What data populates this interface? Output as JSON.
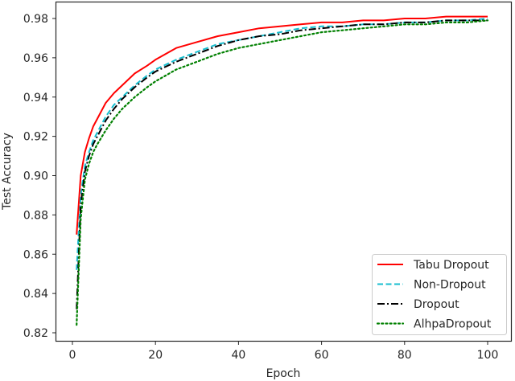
{
  "chart_data": {
    "type": "line",
    "title": "",
    "xlabel": "Epoch",
    "ylabel": "Test Accuracy",
    "xlim": [
      -4,
      105
    ],
    "ylim": [
      0.8164,
      0.9885
    ],
    "xticks": [
      0,
      20,
      40,
      60,
      80,
      100
    ],
    "xtick_labels": [
      "0",
      "20",
      "40",
      "60",
      "80",
      "100"
    ],
    "yticks": [
      0.82,
      0.84,
      0.86,
      0.88,
      0.9,
      0.92,
      0.94,
      0.96,
      0.98
    ],
    "ytick_labels": [
      "0.82",
      "0.84",
      "0.86",
      "0.88",
      "0.90",
      "0.92",
      "0.94",
      "0.96",
      "0.98"
    ],
    "grid": false,
    "legend_position": "lower right",
    "x": [
      1,
      2,
      3,
      4,
      5,
      6,
      8,
      10,
      12,
      15,
      18,
      20,
      25,
      30,
      35,
      40,
      45,
      50,
      55,
      60,
      65,
      70,
      75,
      80,
      85,
      90,
      95,
      100
    ],
    "series": [
      {
        "name": "Tabu Dropout",
        "color": "#ff0000",
        "style": "solid",
        "values": [
          0.87,
          0.9,
          0.912,
          0.919,
          0.925,
          0.929,
          0.937,
          0.942,
          0.946,
          0.952,
          0.956,
          0.959,
          0.965,
          0.968,
          0.971,
          0.973,
          0.975,
          0.976,
          0.977,
          0.978,
          0.978,
          0.979,
          0.979,
          0.98,
          0.98,
          0.981,
          0.981,
          0.981
        ]
      },
      {
        "name": "Non-Dropout",
        "color": "#17becf",
        "style": "dashed",
        "values": [
          0.852,
          0.89,
          0.905,
          0.912,
          0.918,
          0.922,
          0.93,
          0.936,
          0.94,
          0.946,
          0.951,
          0.954,
          0.959,
          0.963,
          0.967,
          0.969,
          0.971,
          0.973,
          0.975,
          0.976,
          0.976,
          0.977,
          0.977,
          0.978,
          0.978,
          0.979,
          0.979,
          0.98
        ]
      },
      {
        "name": "Dropout",
        "color": "#000000",
        "style": "dashdot",
        "values": [
          0.832,
          0.885,
          0.902,
          0.91,
          0.916,
          0.92,
          0.928,
          0.934,
          0.939,
          0.945,
          0.95,
          0.953,
          0.958,
          0.962,
          0.966,
          0.969,
          0.971,
          0.972,
          0.974,
          0.975,
          0.976,
          0.977,
          0.977,
          0.978,
          0.978,
          0.979,
          0.979,
          0.979
        ]
      },
      {
        "name": "AlhpaDropout",
        "color": "#008000",
        "style": "dotted",
        "values": [
          0.824,
          0.878,
          0.898,
          0.906,
          0.912,
          0.916,
          0.923,
          0.929,
          0.934,
          0.94,
          0.945,
          0.948,
          0.954,
          0.958,
          0.962,
          0.965,
          0.967,
          0.969,
          0.971,
          0.973,
          0.974,
          0.975,
          0.976,
          0.977,
          0.977,
          0.978,
          0.978,
          0.979
        ]
      }
    ]
  }
}
